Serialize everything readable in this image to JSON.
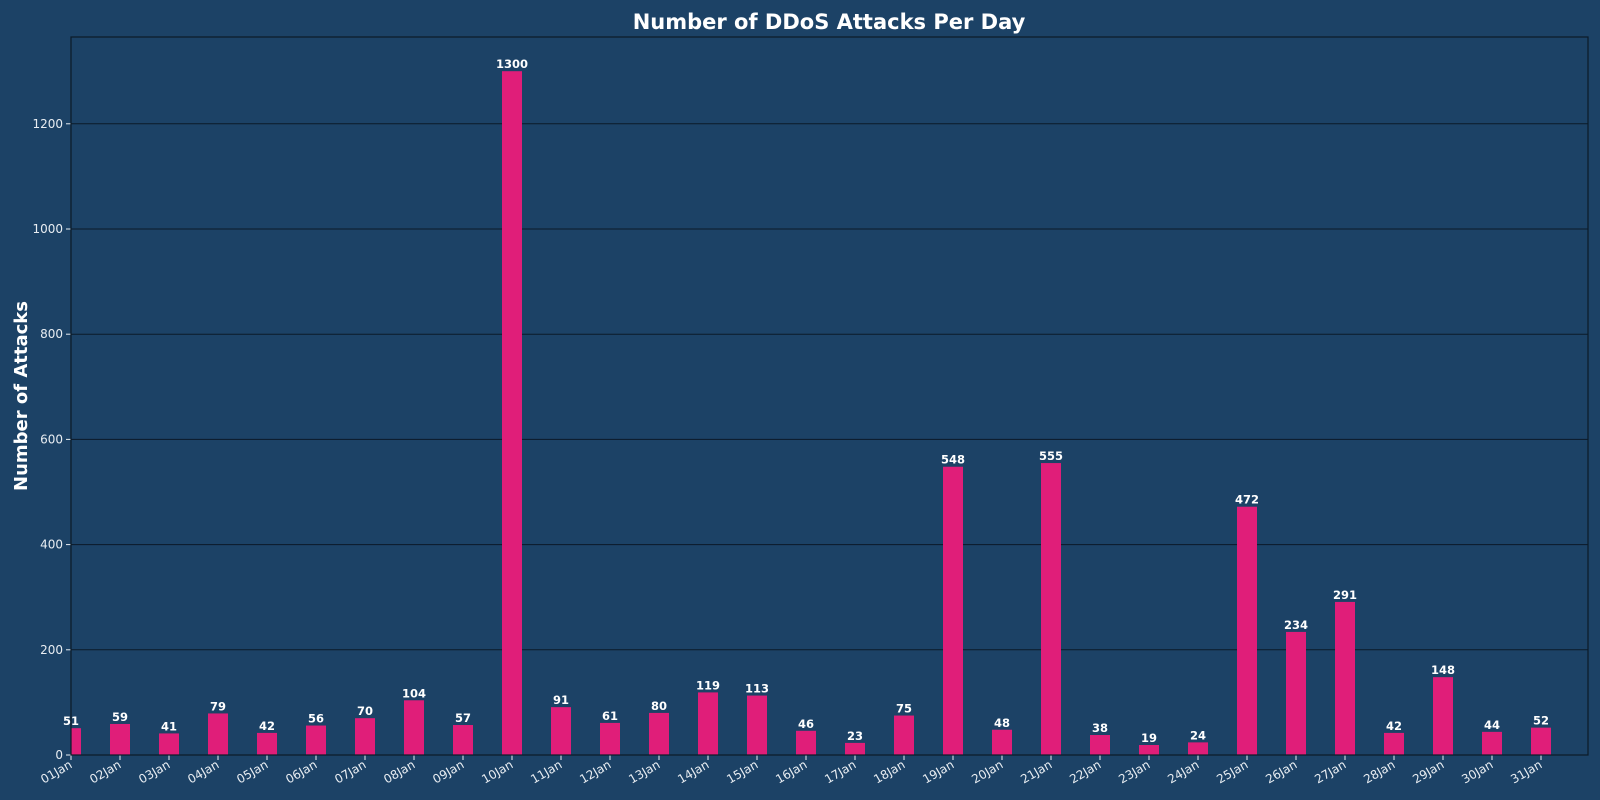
{
  "colors": {
    "background": "#1c4266",
    "bar": "#e01e79",
    "grid": "#0b1a28",
    "text": "#ffffff"
  },
  "chart_data": {
    "type": "bar",
    "title": "Number of DDoS Attacks Per Day",
    "xlabel": "",
    "ylabel": "Number of Attacks",
    "ylim": [
      0,
      1365
    ],
    "yticks": [
      0,
      200,
      400,
      600,
      800,
      1000,
      1200
    ],
    "grid": "y-axis on",
    "categories": [
      "01Jan",
      "02Jan",
      "03Jan",
      "04Jan",
      "05Jan",
      "06Jan",
      "07Jan",
      "08Jan",
      "09Jan",
      "10Jan",
      "11Jan",
      "12Jan",
      "13Jan",
      "14Jan",
      "15Jan",
      "16Jan",
      "17Jan",
      "18Jan",
      "19Jan",
      "20Jan",
      "21Jan",
      "22Jan",
      "23Jan",
      "24Jan",
      "25Jan",
      "26Jan",
      "27Jan",
      "28Jan",
      "29Jan",
      "30Jan",
      "31Jan"
    ],
    "values": [
      51,
      59,
      41,
      79,
      42,
      56,
      70,
      104,
      57,
      1300,
      91,
      61,
      80,
      119,
      113,
      46,
      23,
      75,
      548,
      48,
      555,
      38,
      19,
      24,
      472,
      234,
      291,
      42,
      148,
      44,
      52
    ]
  }
}
